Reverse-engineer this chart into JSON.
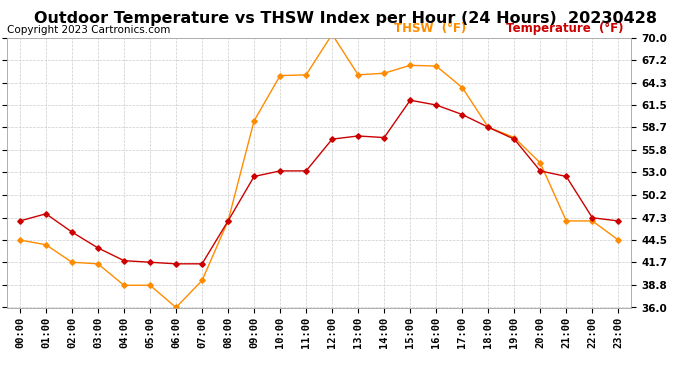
{
  "title": "Outdoor Temperature vs THSW Index per Hour (24 Hours)  20230428",
  "copyright": "Copyright 2023 Cartronics.com",
  "legend_thsw": "THSW  (°F)",
  "legend_temp": "Temperature  (°F)",
  "hours": [
    0,
    1,
    2,
    3,
    4,
    5,
    6,
    7,
    8,
    9,
    10,
    11,
    12,
    13,
    14,
    15,
    16,
    17,
    18,
    19,
    20,
    21,
    22,
    23
  ],
  "temperature": [
    46.9,
    47.8,
    45.5,
    43.5,
    41.9,
    41.7,
    41.5,
    41.5,
    46.9,
    52.5,
    53.2,
    53.2,
    57.2,
    57.6,
    57.4,
    62.1,
    61.5,
    60.3,
    58.7,
    57.2,
    53.2,
    52.5,
    47.3,
    46.9
  ],
  "thsw": [
    44.5,
    43.9,
    41.7,
    41.5,
    38.8,
    38.8,
    36.0,
    39.4,
    46.9,
    59.5,
    65.2,
    65.3,
    70.4,
    65.3,
    65.5,
    66.5,
    66.4,
    63.7,
    58.7,
    57.4,
    54.2,
    46.9,
    46.9,
    44.5
  ],
  "ylim": [
    36.0,
    70.0
  ],
  "yticks": [
    36.0,
    38.8,
    41.7,
    44.5,
    47.3,
    50.2,
    53.0,
    55.8,
    58.7,
    61.5,
    64.3,
    67.2,
    70.0
  ],
  "thsw_color": "#ff8c00",
  "temp_color": "#cc0000",
  "background_color": "#ffffff",
  "grid_color": "#cccccc",
  "title_fontsize": 11.5,
  "tick_fontsize": 7.5,
  "copyright_fontsize": 7.5,
  "legend_fontsize": 8.5
}
